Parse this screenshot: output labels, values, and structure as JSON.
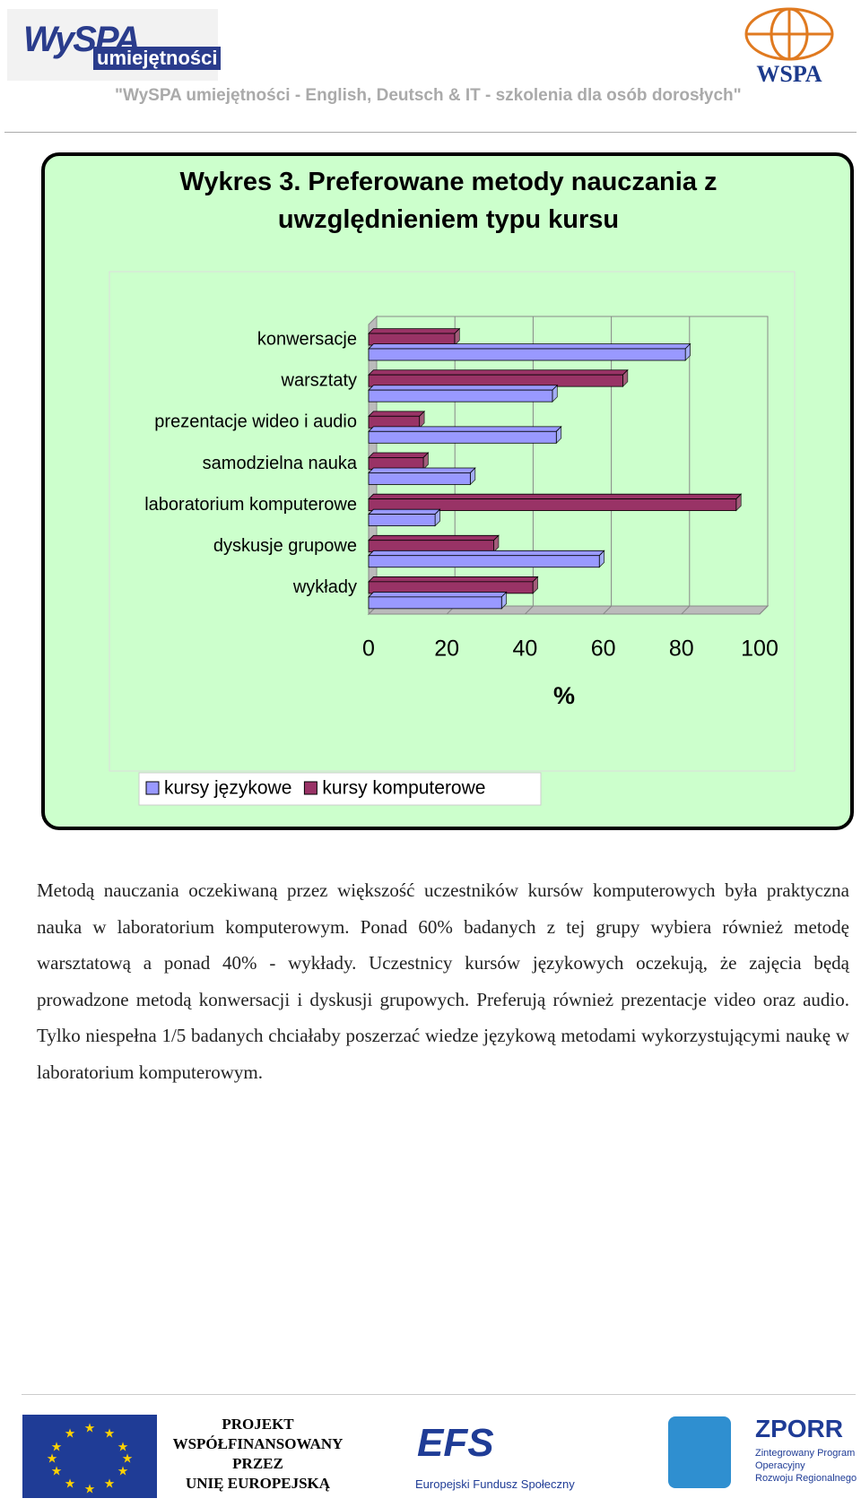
{
  "header": {
    "logo_main": "WySPA",
    "logo_sub": "umiejętności",
    "logo_right": "WSPA",
    "tagline": "\"WySPA umiejętności - English, Deutsch & IT - szkolenia dla osób dorosłych\""
  },
  "chart_data": {
    "type": "bar",
    "orientation": "horizontal",
    "title": "Wykres 3. Preferowane metody nauczania z uwzględnieniem typu kursu",
    "x_label": "%",
    "categories": [
      "konwersacje",
      "warsztaty",
      "prezentacje wideo i audio",
      "samodzielna nauka",
      "laboratorium komputerowe",
      "dyskusje grupowe",
      "wykłady"
    ],
    "series": [
      {
        "name": "kursy językowe",
        "color": "#9999ff",
        "values": [
          81,
          47,
          48,
          26,
          17,
          59,
          34
        ]
      },
      {
        "name": "kursy komputerowe",
        "color": "#993366",
        "values": [
          22,
          65,
          13,
          14,
          94,
          32,
          42
        ]
      }
    ],
    "xlim": [
      0,
      100
    ],
    "xticks": [
      0,
      20,
      40,
      60,
      80,
      100
    ],
    "grid": true,
    "legend": "bottom"
  },
  "paragraph": "Metodą nauczania oczekiwaną przez większość uczestników kursów komputerowych była praktyczna nauka w laboratorium komputerowym. Ponad 60% badanych z tej grupy wybiera również metodę warsztatową a ponad 40% - wykłady. Uczestnicy kursów językowych oczekują, że zajęcia będą prowadzone metodą konwersacji i dyskusji grupowych. Preferują również prezentacje video oraz audio. Tylko niespełna 1/5 badanych chciałaby poszerzać wiedze językową metodami wykorzystującymi naukę w laboratorium komputerowym.",
  "footer": {
    "eu_text": [
      "PROJEKT",
      "WSPÓŁFINANSOWANY",
      "PRZEZ",
      "UNIĘ EUROPEJSKĄ"
    ],
    "efs_logo": "EFS",
    "efs_name": "Europejski Fundusz Społeczny",
    "zporr_logo": "ZPORR",
    "zporr_name": [
      "Zintegrowany Program",
      "Operacyjny",
      "Rozwoju Regionalnego"
    ]
  }
}
